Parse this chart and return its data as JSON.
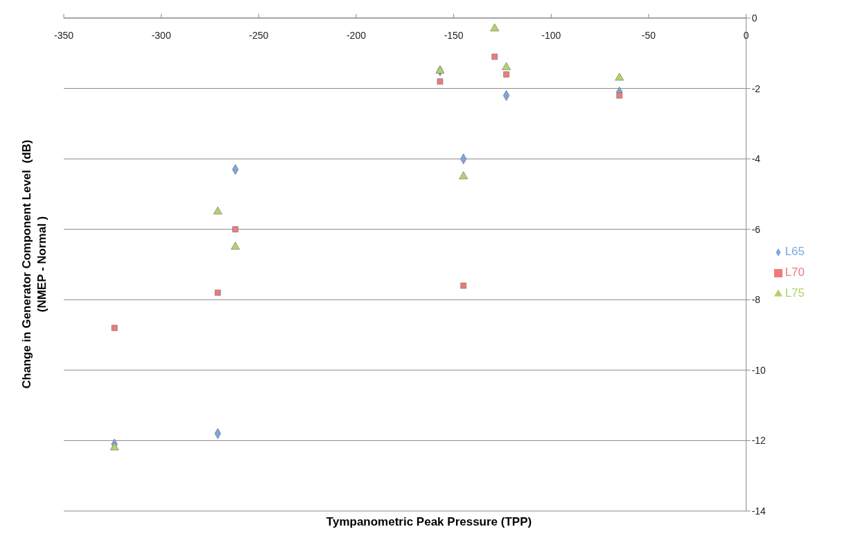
{
  "chart_data": {
    "type": "scatter",
    "xlabel": "Tympanometric Peak Pressure (TPP)",
    "ylabel": "Change in Generator Component Level  (dB)\n(NMEP - Normal )",
    "x": [
      -324,
      -271,
      -262,
      -157,
      -145,
      -129,
      -123,
      -65
    ],
    "series": [
      {
        "name": "L65",
        "color": "#7ea6dc",
        "marker": "diamond",
        "values": [
          -12.1,
          -11.8,
          -4.3,
          -1.5,
          -4.0,
          null,
          -2.2,
          -2.1
        ]
      },
      {
        "name": "L70",
        "color": "#ef7b78",
        "marker": "square",
        "values": [
          -8.8,
          -7.8,
          -6.0,
          -1.8,
          -7.6,
          -1.1,
          -1.6,
          -2.2
        ]
      },
      {
        "name": "L75",
        "color": "#b3d36a",
        "marker": "triangle",
        "values": [
          -12.2,
          -5.5,
          -6.5,
          -1.5,
          -4.5,
          -0.3,
          -1.4,
          -1.7
        ]
      }
    ],
    "xlim": [
      -350,
      0
    ],
    "xticks": [
      -350,
      -300,
      -250,
      -200,
      -150,
      -100,
      -50,
      0
    ],
    "ylim": [
      -14,
      0
    ],
    "yticks": [
      0,
      -2,
      -4,
      -6,
      -8,
      -10,
      -12,
      -14
    ],
    "grid": "y",
    "legend": "right"
  }
}
